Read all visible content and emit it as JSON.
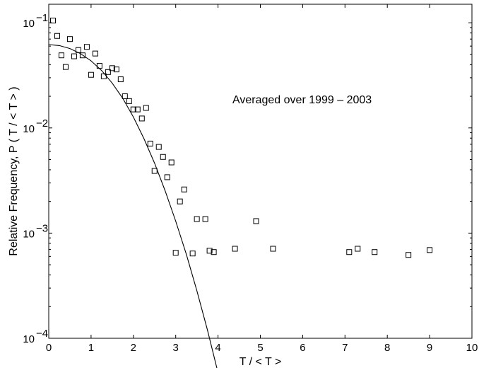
{
  "chart_data": {
    "type": "scatter",
    "xlabel": "T / < T >",
    "ylabel": "Relative Frequency, P ( T / < T > )",
    "annotation": "Averaged over 1999 – 2003",
    "xlim": [
      0,
      10
    ],
    "ylim": [
      0.0001,
      0.15
    ],
    "yscale": "log",
    "grid": false,
    "x_ticks": [
      0,
      1,
      2,
      3,
      4,
      5,
      6,
      7,
      8,
      9,
      10
    ],
    "x_tick_labels": [
      "0",
      "1",
      "2",
      "3",
      "4",
      "5",
      "6",
      "7",
      "8",
      "9",
      "10"
    ],
    "y_ticks": [
      0.0001,
      0.001,
      0.01,
      0.1
    ],
    "y_tick_labels": [
      {
        "base": "10",
        "exp": "−4"
      },
      {
        "base": "10",
        "exp": "−3"
      },
      {
        "base": "10",
        "exp": "−2"
      },
      {
        "base": "10",
        "exp": "−1"
      }
    ],
    "series": [
      {
        "marker": "square",
        "x": [
          0.1,
          0.2,
          0.3,
          0.4,
          0.5,
          0.6,
          0.7,
          0.8,
          0.9,
          1.0,
          1.1,
          1.2,
          1.3,
          1.4,
          1.5,
          1.6,
          1.7,
          1.8,
          1.9,
          2.0,
          2.1,
          2.2,
          2.3,
          2.4,
          2.5,
          2.6,
          2.7,
          2.8,
          2.9,
          3.0,
          3.1,
          3.2,
          3.4,
          3.5,
          3.7,
          3.8,
          3.9,
          4.4,
          4.9,
          5.3,
          7.1,
          7.3,
          7.7,
          8.5,
          9.0
        ],
        "y": [
          0.105,
          0.075,
          0.049,
          0.038,
          0.07,
          0.048,
          0.055,
          0.049,
          0.059,
          0.032,
          0.051,
          0.039,
          0.031,
          0.034,
          0.037,
          0.036,
          0.029,
          0.02,
          0.018,
          0.015,
          0.015,
          0.0123,
          0.0155,
          0.0071,
          0.0039,
          0.0066,
          0.0053,
          0.0034,
          0.0047,
          0.00065,
          0.002,
          0.0026,
          0.00064,
          0.00136,
          0.00136,
          0.00068,
          0.00066,
          0.00071,
          0.0013,
          0.00071,
          0.00066,
          0.00071,
          0.00066,
          0.00062,
          0.00069
        ]
      },
      {
        "type": "line",
        "x": [
          0.0,
          0.25,
          0.5,
          0.75,
          1.0,
          1.25,
          1.5,
          1.75,
          2.0,
          2.25,
          2.5,
          2.75,
          3.0,
          3.25,
          3.5,
          3.75,
          4.0
        ],
        "y": [
          0.062,
          0.0607,
          0.0569,
          0.0509,
          0.0434,
          0.0351,
          0.0267,
          0.0191,
          0.0127,
          0.0079,
          0.00462,
          0.00253,
          0.0013,
          0.00063,
          0.000284,
          0.00012,
          4.7e-05
        ]
      }
    ]
  }
}
